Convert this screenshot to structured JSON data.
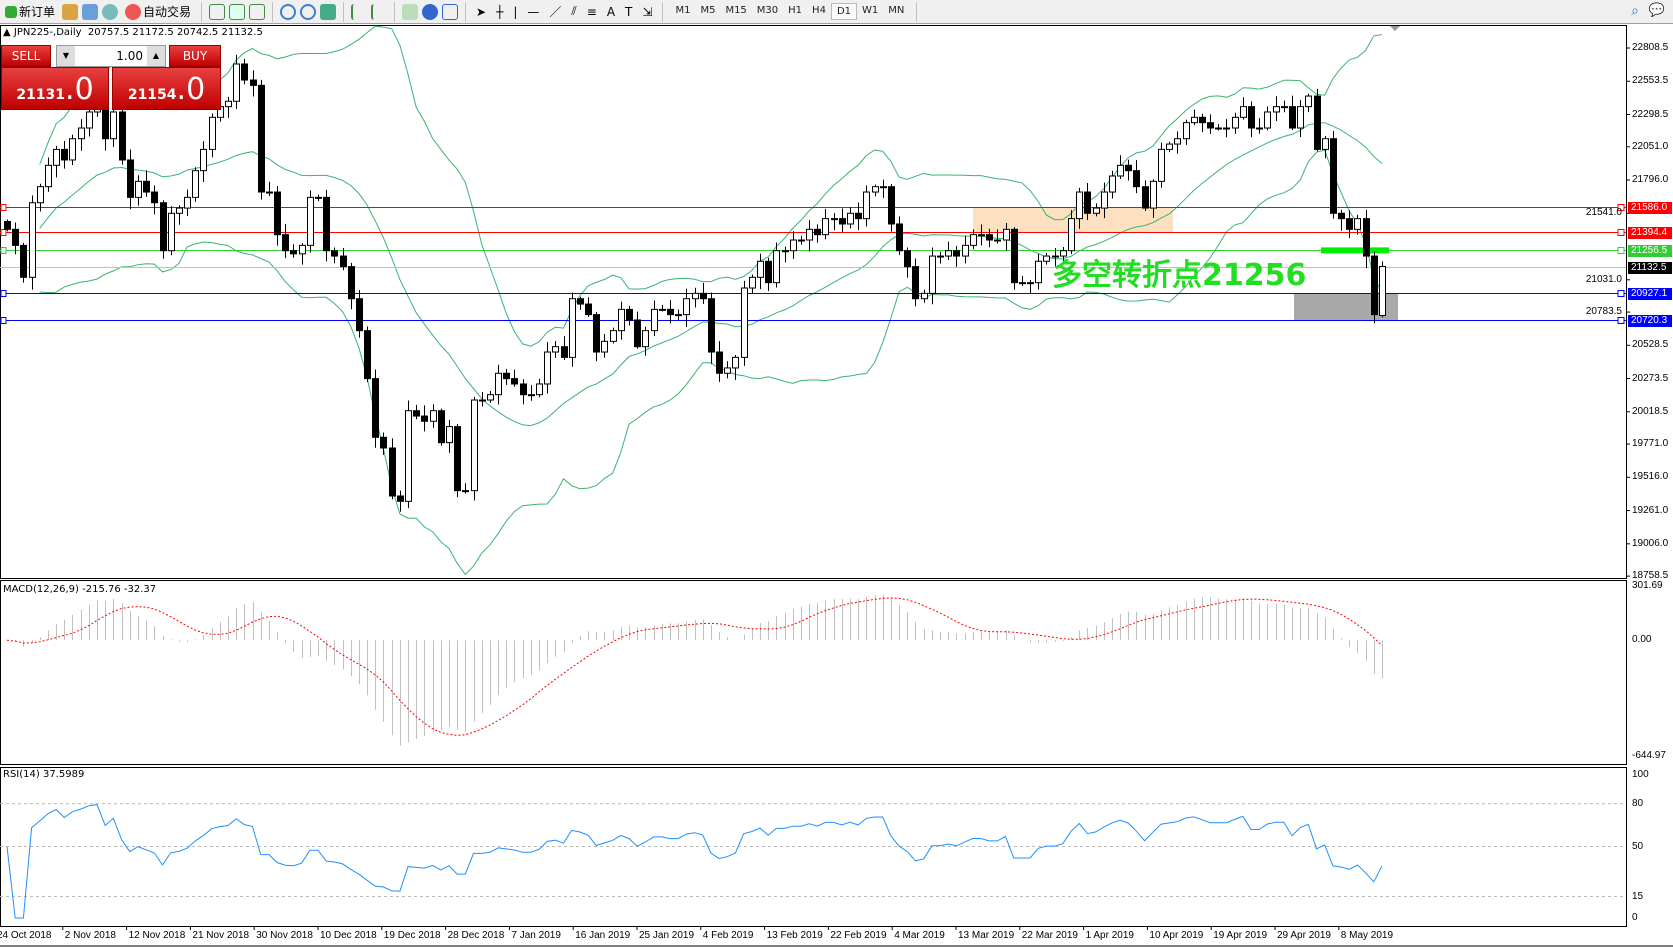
{
  "toolbar": {
    "new_order": "新订单",
    "auto_trading": "自动交易",
    "timeframes": [
      "M1",
      "M5",
      "M15",
      "M30",
      "H1",
      "H4",
      "D1",
      "W1",
      "MN"
    ],
    "active_timeframe": "D1"
  },
  "chart": {
    "title": "JPN225-,Daily",
    "ohlc_text": "20757.5 21172.5 20742.5 21132.5",
    "last_bar": {
      "open": 20757.5,
      "high": 21172.5,
      "low": 20742.5,
      "close": 21132.5
    },
    "price_range": [
      18744,
      22985
    ],
    "price_axis": [
      "22808.5",
      "22553.5",
      "22298.5",
      "22051.0",
      "21796.0",
      "21541.0",
      "21031.0",
      "20783.5",
      "20528.5",
      "20273.5",
      "20018.5",
      "19771.0",
      "19516.0",
      "19261.0",
      "19006.0",
      "18758.5"
    ],
    "closes": [
      21418,
      21295,
      21050,
      21622,
      21745,
      21909,
      22031,
      21950,
      22113,
      22195,
      22318,
      22359,
      22113,
      22318,
      21950,
      21663,
      21786,
      21704,
      21622,
      21254,
      21541,
      21581,
      21663,
      21868,
      22031,
      22277,
      22359,
      22400,
      22686,
      22563,
      22522,
      21704,
      21704,
      21377,
      21254,
      21230,
      21295,
      21663,
      21663,
      21254,
      21213,
      21132,
      20886,
      20641,
      20273,
      19823,
      19741,
      19373,
      19332,
      20027,
      19986,
      19946,
      20027,
      19782,
      19905,
      19414,
      19414,
      20109,
      20109,
      20150,
      20314,
      20273,
      20232,
      20150,
      20150,
      20232,
      20477,
      20518,
      20436,
      20886,
      20845,
      20764,
      20477,
      20559,
      20641,
      20804,
      20723,
      20518,
      20641,
      20804,
      20804,
      20764,
      20764,
      20886,
      20927,
      20886,
      20477,
      20314,
      20355,
      20436,
      20968,
      21050,
      21173,
      21009,
      21254,
      21254,
      21336,
      21336,
      21418,
      21377,
      21500,
      21500,
      21459,
      21541,
      21500,
      21704,
      21745,
      21745,
      21459,
      21254,
      21132,
      20886,
      20927,
      21213,
      21213,
      21254,
      21213,
      21295,
      21377,
      21377,
      21336,
      21336,
      21418,
      21009,
      21009,
      21009,
      21173,
      21213,
      21213,
      21254,
      21500,
      21704,
      21541,
      21581,
      21704,
      21827,
      21909,
      21868,
      21745,
      21581,
      21786,
      22031,
      22072,
      22113,
      22236,
      22277,
      22236,
      22195,
      22195,
      22195,
      22277,
      22359,
      22195,
      22195,
      22318,
      22359,
      22359,
      22195,
      22359,
      22440,
      22031,
      22113,
      21541,
      21500,
      21418,
      21500,
      21213,
      20764,
      21132.5
    ],
    "hlines": [
      {
        "price": 21586.0,
        "label": "21586.0",
        "color": "#ff0000"
      },
      {
        "price": 21394.4,
        "label": "21394.4",
        "color": "#ff0000"
      },
      {
        "price": 21256.5,
        "label": "21256.5",
        "color": "#32cd32"
      },
      {
        "price": 21132.5,
        "label": "21132.5",
        "color": "#000000",
        "line": "#c0c0c0"
      },
      {
        "price": 20927.1,
        "label": "20927.1",
        "color": "#0000ff"
      },
      {
        "price": 20720.3,
        "label": "20720.3",
        "color": "#0000ff"
      }
    ],
    "annotation": "多空转折点21256",
    "band_color": "#3cb371",
    "resistance_zone_color": "#fde0c0",
    "support_zone_color": "#a9a9a9",
    "pivot_bar_color": "#00ee00"
  },
  "trade_panel": {
    "sell_label": "SELL",
    "buy_label": "BUY",
    "lot": "1.00",
    "sell_price_main": "21131",
    "sell_price_frac": ".0",
    "buy_price_main": "21154",
    "buy_price_frac": ".0"
  },
  "macd": {
    "label": "MACD(12,26,9) -215.76 -32.37",
    "max": 301.69,
    "min": -644.97,
    "axis": [
      "301.69",
      "0.00",
      "-644.97"
    ],
    "hist_color": "#c0c0c0",
    "signal_color": "#ff0000"
  },
  "rsi": {
    "label": "RSI(14) 37.5989",
    "levels": [
      80,
      50,
      15
    ],
    "axis": [
      "100",
      "80",
      "50",
      "15",
      "0"
    ],
    "color": "#1e90ff"
  },
  "dates": [
    "24 Oct 2018",
    "2 Nov 2018",
    "12 Nov 2018",
    "21 Nov 2018",
    "30 Nov 2018",
    "10 Dec 2018",
    "19 Dec 2018",
    "28 Dec 2018",
    "7 Jan 2019",
    "16 Jan 2019",
    "25 Jan 2019",
    "4 Feb 2019",
    "13 Feb 2019",
    "22 Feb 2019",
    "4 Mar 2019",
    "13 Mar 2019",
    "22 Mar 2019",
    "1 Apr 2019",
    "10 Apr 2019",
    "19 Apr 2019",
    "29 Apr 2019",
    "8 May 2019"
  ]
}
